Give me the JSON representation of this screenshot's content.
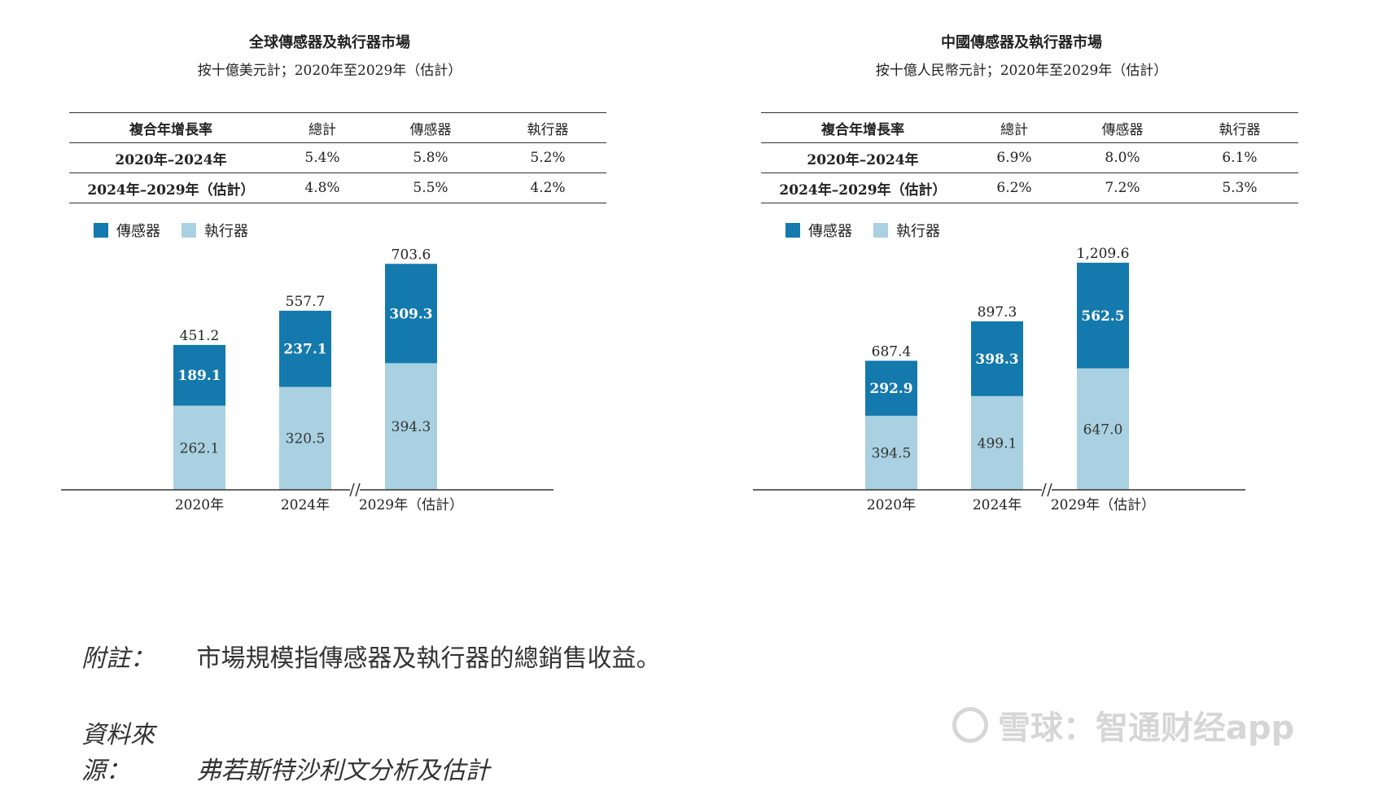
{
  "colors": {
    "sensor": "#1479ad",
    "actuator": "#a9d1e1",
    "axis": "#333333"
  },
  "legend": {
    "sensor": "傳感器",
    "actuator": "執行器"
  },
  "chart_data": [
    {
      "type": "bar",
      "stacked": true,
      "title": "全球傳感器及執行器市場",
      "subtitle": "按十億美元計；2020年至2029年（估計）",
      "table": {
        "headers": [
          "複合年增長率",
          "總計",
          "傳感器",
          "執行器"
        ],
        "rows": [
          [
            "2020年–2024年",
            "5.4%",
            "5.8%",
            "5.2%"
          ],
          [
            "2024年–2029年（估計）",
            "4.8%",
            "5.5%",
            "4.2%"
          ]
        ]
      },
      "categories": [
        "2020年",
        "2024年",
        "2029年（估計）"
      ],
      "series": [
        {
          "name": "執行器",
          "values": [
            262.1,
            320.5,
            394.3
          ]
        },
        {
          "name": "傳感器",
          "values": [
            189.1,
            237.1,
            309.3
          ]
        }
      ],
      "totals": [
        451.2,
        557.7,
        703.6
      ],
      "value_labels": {
        "actuator": [
          "262.1",
          "320.5",
          "394.3"
        ],
        "sensor": [
          "189.1",
          "237.1",
          "309.3"
        ],
        "totals": [
          "451.2",
          "557.7",
          "703.6"
        ]
      },
      "ylim": [
        0,
        760
      ],
      "axis_break_before_index": 2
    },
    {
      "type": "bar",
      "stacked": true,
      "title": "中國傳感器及執行器市場",
      "subtitle": "按十億人民幣元計；2020年至2029年（估計）",
      "table": {
        "headers": [
          "複合年增長率",
          "總計",
          "傳感器",
          "執行器"
        ],
        "rows": [
          [
            "2020年–2024年",
            "6.9%",
            "8.0%",
            "6.1%"
          ],
          [
            "2024年–2029年（估計）",
            "6.2%",
            "7.2%",
            "5.3%"
          ]
        ]
      },
      "categories": [
        "2020年",
        "2024年",
        "2029年（估計）"
      ],
      "series": [
        {
          "name": "執行器",
          "values": [
            394.5,
            499.1,
            647.0
          ]
        },
        {
          "name": "傳感器",
          "values": [
            292.9,
            398.3,
            562.5
          ]
        }
      ],
      "totals": [
        687.4,
        897.3,
        1209.6
      ],
      "value_labels": {
        "actuator": [
          "394.5",
          "499.1",
          "647.0"
        ],
        "sensor": [
          "292.9",
          "398.3",
          "562.5"
        ],
        "totals": [
          "687.4",
          "897.3",
          "1,209.6"
        ]
      },
      "ylim": [
        0,
        1300
      ],
      "axis_break_before_index": 2
    }
  ],
  "notes": {
    "note_label": "附註：",
    "note_text": "市場規模指傳感器及執行器的總銷售收益。",
    "source_label": "資料來源：",
    "source_text": "弗若斯特沙利文分析及估計"
  },
  "watermark": {
    "text": "雪球：智通财经app"
  }
}
